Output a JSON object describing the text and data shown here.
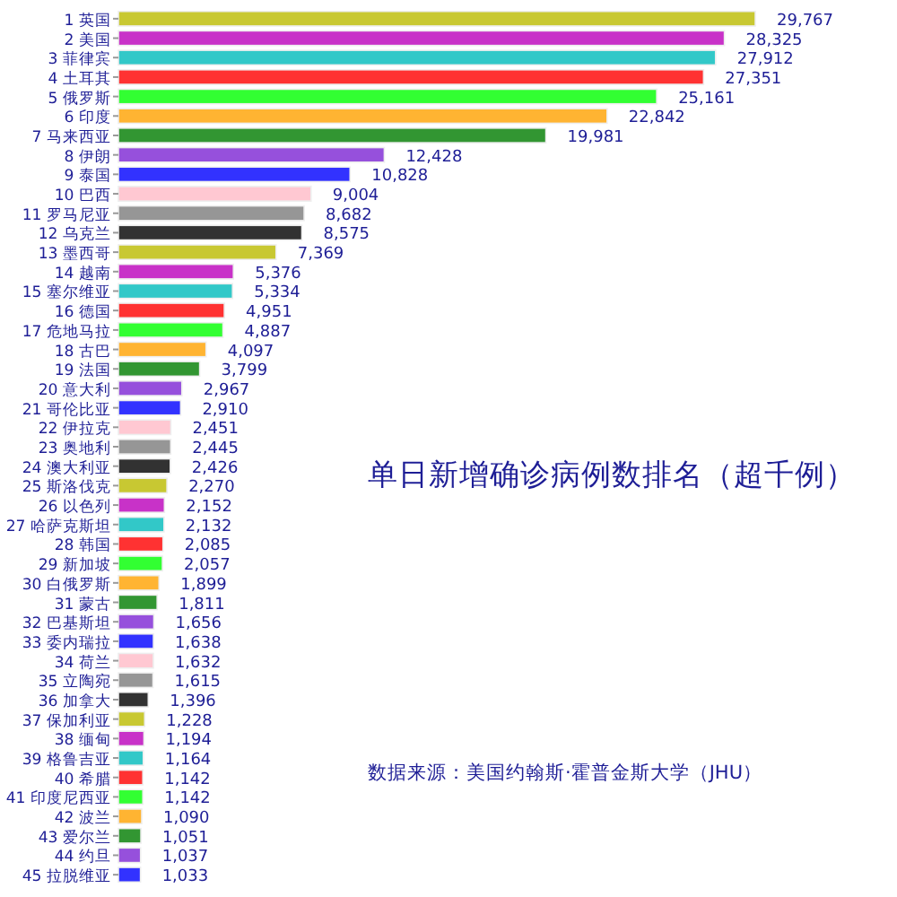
{
  "chart_data": {
    "type": "bar",
    "orientation": "horizontal",
    "title": "单日新增确诊病例数排名（超千例）",
    "annotations": [
      "数据来源：美国约翰斯·霍普金斯大学（JHU）"
    ],
    "categories": [
      "1 英国",
      "2 美国",
      "3 菲律宾",
      "4 土耳其",
      "5 俄罗斯",
      "6 印度",
      "7 马来西亚",
      "8 伊朗",
      "9 泰国",
      "10 巴西",
      "11 罗马尼亚",
      "12 乌克兰",
      "13 墨西哥",
      "14 越南",
      "15 塞尔维亚",
      "16 德国",
      "17 危地马拉",
      "18 古巴",
      "19 法国",
      "20 意大利",
      "21 哥伦比亚",
      "22 伊拉克",
      "23 奥地利",
      "24 澳大利亚",
      "25 斯洛伐克",
      "26 以色列",
      "27 哈萨克斯坦",
      "28 韩国",
      "29 新加坡",
      "30 白俄罗斯",
      "31 蒙古",
      "32 巴基斯坦",
      "33 委内瑞拉",
      "34 荷兰",
      "35 立陶宛",
      "36 加拿大",
      "37 保加利亚",
      "38 缅甸",
      "39 格鲁吉亚",
      "40 希腊",
      "41 印度尼西亚",
      "42 波兰",
      "43 爱尔兰",
      "44 约旦",
      "45 拉脱维亚"
    ],
    "values": [
      29767,
      28325,
      27912,
      27351,
      25161,
      22842,
      19981,
      12428,
      10828,
      9004,
      8682,
      8575,
      7369,
      5376,
      5334,
      4951,
      4887,
      4097,
      3799,
      2967,
      2910,
      2451,
      2445,
      2426,
      2270,
      2152,
      2132,
      2085,
      2057,
      1899,
      1811,
      1656,
      1638,
      1632,
      1615,
      1396,
      1228,
      1194,
      1164,
      1142,
      1142,
      1090,
      1051,
      1037,
      1033
    ],
    "value_labels": [
      "29,767",
      "28,325",
      "27,912",
      "27,351",
      "25,161",
      "22,842",
      "19,981",
      "12,428",
      "10,828",
      "9,004",
      "8,682",
      "8,575",
      "7,369",
      "5,376",
      "5,334",
      "4,951",
      "4,887",
      "4,097",
      "3,799",
      "2,967",
      "2,910",
      "2,451",
      "2,445",
      "2,426",
      "2,270",
      "2,152",
      "2,132",
      "2,085",
      "2,057",
      "1,899",
      "1,811",
      "1,656",
      "1,638",
      "1,632",
      "1,615",
      "1,396",
      "1,228",
      "1,194",
      "1,164",
      "1,142",
      "1,142",
      "1,090",
      "1,051",
      "1,037",
      "1,033"
    ],
    "colors": [
      "#c8c832",
      "#c832c8",
      "#32c8c8",
      "#ff3232",
      "#32ff32",
      "#ffb432",
      "#329632",
      "#9650dc",
      "#3232ff",
      "#ffc8d2",
      "#969696",
      "#323232",
      "#c8c832",
      "#c832c8",
      "#32c8c8",
      "#ff3232",
      "#32ff32",
      "#ffb432",
      "#329632",
      "#9650dc",
      "#3232ff",
      "#ffc8d2",
      "#969696",
      "#323232",
      "#c8c832",
      "#c832c8",
      "#32c8c8",
      "#ff3232",
      "#32ff32",
      "#ffb432",
      "#329632",
      "#9650dc",
      "#3232ff",
      "#ffc8d2",
      "#969696",
      "#323232",
      "#c8c832",
      "#c832c8",
      "#32c8c8",
      "#ff3232",
      "#32ff32",
      "#ffb432",
      "#329632",
      "#9650dc",
      "#3232ff"
    ]
  }
}
